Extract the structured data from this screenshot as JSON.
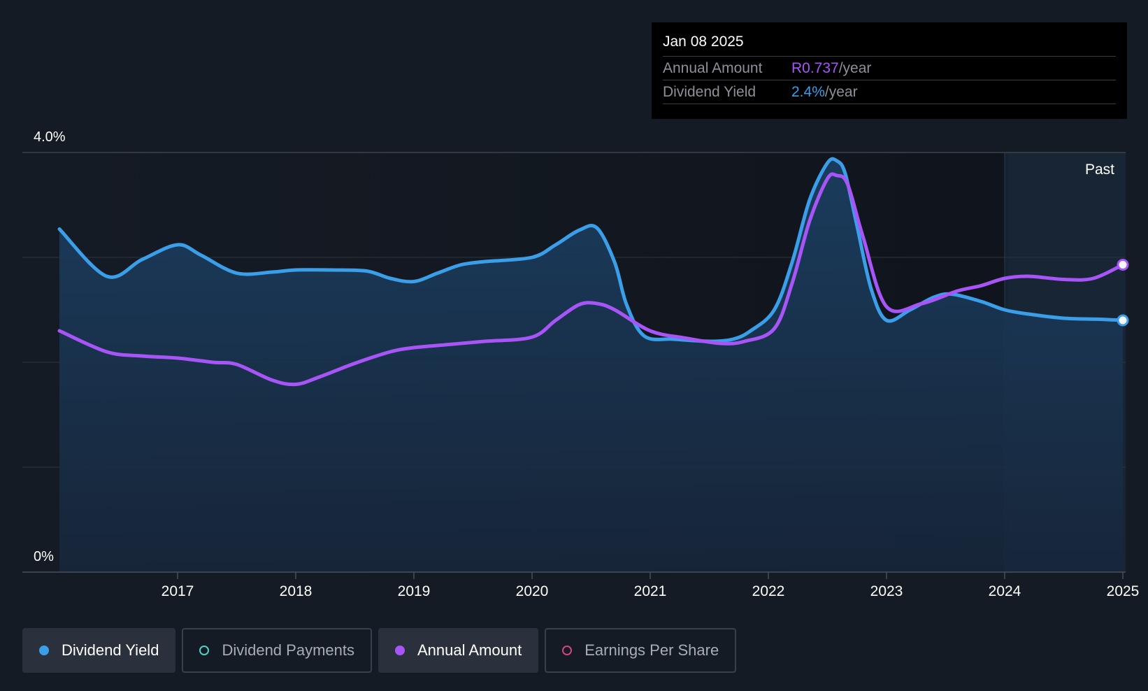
{
  "tooltip": {
    "date": "Jan 08 2025",
    "rows": [
      {
        "label": "Annual Amount",
        "value": "R0.737",
        "suffix": "/year",
        "color": "#a855f7"
      },
      {
        "label": "Dividend Yield",
        "value": "2.4%",
        "suffix": "/year",
        "color": "#3b9ee8"
      }
    ]
  },
  "legend": [
    {
      "label": "Dividend Yield",
      "active": true,
      "color": "#3b9ee8"
    },
    {
      "label": "Dividend Payments",
      "active": false,
      "color": "#4fd1c5"
    },
    {
      "label": "Annual Amount",
      "active": true,
      "color": "#a855f7"
    },
    {
      "label": "Earnings Per Share",
      "active": false,
      "color": "#d6457a"
    }
  ],
  "chart_data": {
    "type": "line",
    "xlim": [
      2015.62,
      2025.02
    ],
    "ylim": [
      0,
      4.0
    ],
    "y_ticks": [
      {
        "value": 4.0,
        "label": "4.0%"
      },
      {
        "value": 0,
        "label": "0%"
      }
    ],
    "gridlines": [
      1.0,
      2.0,
      3.0
    ],
    "x_ticks": [
      2017,
      2018,
      2019,
      2020,
      2021,
      2022,
      2023,
      2024,
      2025
    ],
    "x_tick_labels": [
      "2017",
      "2018",
      "2019",
      "2020",
      "2021",
      "2022",
      "2023",
      "2024",
      "2025"
    ],
    "past_label": "Past",
    "past_start": 2024.0,
    "series": [
      {
        "name": "Dividend Yield",
        "color": "#3b9ee8",
        "fill": true,
        "x": [
          2016.0,
          2016.4,
          2016.7,
          2017.0,
          2017.2,
          2017.5,
          2017.8,
          2018.0,
          2018.3,
          2018.6,
          2018.8,
          2019.0,
          2019.2,
          2019.4,
          2019.6,
          2020.0,
          2020.2,
          2020.4,
          2020.55,
          2020.7,
          2020.8,
          2020.95,
          2021.2,
          2021.5,
          2021.7,
          2021.85,
          2022.05,
          2022.2,
          2022.35,
          2022.5,
          2022.58,
          2022.65,
          2022.75,
          2022.87,
          2023.0,
          2023.2,
          2023.4,
          2023.55,
          2023.8,
          2024.0,
          2024.2,
          2024.5,
          2024.8,
          2025.0
        ],
        "values": [
          3.27,
          2.82,
          2.98,
          3.12,
          3.02,
          2.85,
          2.86,
          2.88,
          2.88,
          2.87,
          2.8,
          2.77,
          2.85,
          2.93,
          2.96,
          3.0,
          3.12,
          3.26,
          3.28,
          2.95,
          2.55,
          2.25,
          2.22,
          2.2,
          2.22,
          2.3,
          2.5,
          2.95,
          3.55,
          3.9,
          3.92,
          3.8,
          3.3,
          2.7,
          2.4,
          2.5,
          2.62,
          2.65,
          2.58,
          2.5,
          2.46,
          2.42,
          2.41,
          2.4
        ]
      },
      {
        "name": "Annual Amount",
        "color": "#a855f7",
        "fill": false,
        "x": [
          2016.0,
          2016.4,
          2016.7,
          2017.0,
          2017.3,
          2017.5,
          2017.8,
          2018.0,
          2018.2,
          2018.5,
          2018.8,
          2019.0,
          2019.3,
          2019.6,
          2020.0,
          2020.2,
          2020.4,
          2020.55,
          2020.7,
          2021.0,
          2021.3,
          2021.6,
          2021.8,
          2022.05,
          2022.2,
          2022.35,
          2022.5,
          2022.58,
          2022.67,
          2022.8,
          2023.0,
          2023.3,
          2023.6,
          2023.8,
          2024.0,
          2024.2,
          2024.5,
          2024.75,
          2025.0
        ],
        "values": [
          2.3,
          2.1,
          2.06,
          2.04,
          2.0,
          1.98,
          1.83,
          1.79,
          1.86,
          1.99,
          2.1,
          2.14,
          2.17,
          2.2,
          2.24,
          2.4,
          2.55,
          2.56,
          2.5,
          2.3,
          2.23,
          2.18,
          2.2,
          2.32,
          2.75,
          3.35,
          3.75,
          3.78,
          3.7,
          3.2,
          2.53,
          2.56,
          2.68,
          2.73,
          2.8,
          2.82,
          2.79,
          2.8,
          2.93
        ]
      }
    ]
  }
}
